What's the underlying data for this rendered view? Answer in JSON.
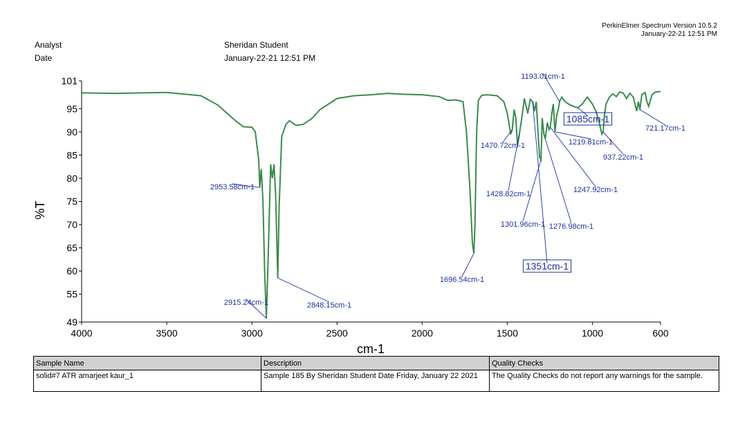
{
  "header": {
    "software": "PerkinElmer Spectrum Version 10.5.2",
    "timestamp": "January-22-21 12:51 PM",
    "analyst_label": "Analyst",
    "analyst_value": "Sheridan Student",
    "date_label": "Date",
    "date_value": "January-22-21 12:51 PM"
  },
  "chart_data": {
    "type": "line",
    "xlabel": "cm-1",
    "ylabel": "%T",
    "xlim": [
      4000,
      600
    ],
    "ylim": [
      49,
      101
    ],
    "xticks": [
      4000,
      3500,
      3000,
      2500,
      2000,
      1500,
      1000,
      600
    ],
    "yticks": [
      49,
      55,
      60,
      65,
      70,
      75,
      80,
      85,
      90,
      95,
      101
    ],
    "color": "#3a8a4e",
    "series": [
      {
        "x": [
          4000,
          3800,
          3500,
          3300,
          3200,
          3100,
          3050,
          3000,
          2980,
          2960,
          2953.58,
          2945,
          2935,
          2925,
          2915.24,
          2905,
          2890,
          2880,
          2870,
          2860,
          2848.15,
          2840,
          2825,
          2800,
          2780,
          2740,
          2700,
          2650,
          2600,
          2500,
          2400,
          2300,
          2200,
          2100,
          2000,
          1900,
          1850,
          1800,
          1760,
          1740,
          1720,
          1705,
          1696.54,
          1690,
          1680,
          1670,
          1650,
          1620,
          1560,
          1520,
          1500,
          1480,
          1470.72,
          1460,
          1450,
          1440,
          1428.82,
          1415,
          1400,
          1380,
          1365,
          1351,
          1340,
          1330,
          1320,
          1310,
          1301.96,
          1295,
          1285,
          1276.98,
          1265,
          1255,
          1247.92,
          1238,
          1230,
          1219.81,
          1210,
          1200,
          1193.01,
          1180,
          1160,
          1140,
          1110,
          1085,
          1060,
          1030,
          1000,
          980,
          960,
          945,
          937.22,
          930,
          920,
          900,
          880,
          860,
          840,
          820,
          800,
          780,
          760,
          740,
          730,
          721.17,
          710,
          690,
          680,
          670,
          650,
          630,
          600
        ],
        "y": [
          98.4,
          98.3,
          98.5,
          97.8,
          95.8,
          92.5,
          91.1,
          91.0,
          90.0,
          84.0,
          78.0,
          82.0,
          75.0,
          60.0,
          49.8,
          62.0,
          83.0,
          80.0,
          83.0,
          76.0,
          58.5,
          74.0,
          89.0,
          91.6,
          92.4,
          91.4,
          91.6,
          92.8,
          94.8,
          97.2,
          97.8,
          98.0,
          98.3,
          98.1,
          98.0,
          97.6,
          96.8,
          96.9,
          96.5,
          90.0,
          78.0,
          66.0,
          63.8,
          70.0,
          90.0,
          96.8,
          97.9,
          98.0,
          97.8,
          96.5,
          94.0,
          89.5,
          90.5,
          94.8,
          93.0,
          87.0,
          89.6,
          93.0,
          97.2,
          94.0,
          97.0,
          96.5,
          94.5,
          96.5,
          90.0,
          84.5,
          84.0,
          93.0,
          89.5,
          88.5,
          92.0,
          90.5,
          91.0,
          94.0,
          96.0,
          90.0,
          93.5,
          95.0,
          96.5,
          97.5,
          96.5,
          96.0,
          95.5,
          95.2,
          96.0,
          97.5,
          96.0,
          94.5,
          92.0,
          89.5,
          90.0,
          93.5,
          96.0,
          97.5,
          98.2,
          97.6,
          98.6,
          98.4,
          97.2,
          98.3,
          97.5,
          94.5,
          96.5,
          94.8,
          98.0,
          98.5,
          96.5,
          95.5,
          98.0,
          98.6,
          98.7
        ]
      }
    ],
    "peak_labels": [
      {
        "label": "2953.58cm-1",
        "x": 2953.58,
        "y": 78.0
      },
      {
        "label": "2915.24cm-1",
        "x": 2915.24,
        "y": 49.8
      },
      {
        "label": "2848.15cm-1",
        "x": 2848.15,
        "y": 58.5
      },
      {
        "label": "1696.54cm-1",
        "x": 1696.54,
        "y": 63.8
      },
      {
        "label": "1470.72cm-1",
        "x": 1470.72,
        "y": 90.5
      },
      {
        "label": "1428.82cm-1",
        "x": 1428.82,
        "y": 89.6
      },
      {
        "label": "1351cm-1",
        "x": 1351,
        "y": 96.5,
        "boxed": true
      },
      {
        "label": "1301.96cm-1",
        "x": 1301.96,
        "y": 84.0
      },
      {
        "label": "1276.98cm-1",
        "x": 1276.98,
        "y": 88.5
      },
      {
        "label": "1247.92cm-1",
        "x": 1247.92,
        "y": 91.0
      },
      {
        "label": "1219.81cm-1",
        "x": 1219.81,
        "y": 90.0
      },
      {
        "label": "1193.01cm-1",
        "x": 1193.01,
        "y": 96.5
      },
      {
        "label": "1085cm-1",
        "x": 1085,
        "y": 95.2,
        "boxed": true
      },
      {
        "label": "937.22cm-1",
        "x": 937.22,
        "y": 90.0
      },
      {
        "label": "721.17cm-1",
        "x": 721.17,
        "y": 94.8
      }
    ]
  },
  "table": {
    "headers": [
      "Sample Name",
      "Description",
      "Quality Checks"
    ],
    "row": [
      "solid#7 ATR amarjeet kaur_1",
      "Sample 185 By Sheridan Student Date Friday, January 22 2021",
      "The Quality Checks do not report any warnings for the sample."
    ]
  }
}
